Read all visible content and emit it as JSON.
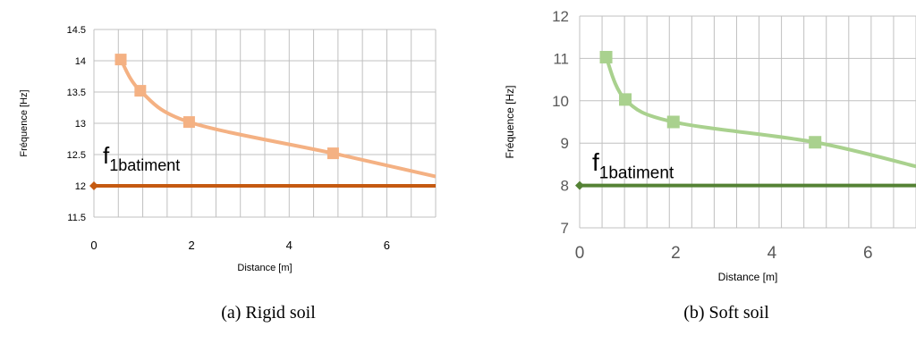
{
  "chart_data": [
    {
      "type": "line",
      "panel": "a",
      "xlabel": "Distance [m]",
      "ylabel": "Fréquence [Hz]",
      "xlim": [
        0,
        7
      ],
      "ylim": [
        11.5,
        14.5
      ],
      "xticks": [
        0,
        2,
        4,
        6
      ],
      "yticks": [
        11.5,
        12,
        12.5,
        13,
        13.5,
        14,
        14.5
      ],
      "grid": true,
      "series": [
        {
          "color": "#f4b183",
          "marker": "square",
          "points": [
            [
              0.55,
              14.02
            ],
            [
              0.95,
              13.52
            ],
            [
              1.95,
              13.02
            ],
            [
              4.9,
              12.52
            ]
          ],
          "extend_to": [
            7,
            12.15
          ]
        },
        {
          "color": "#c55a11",
          "marker": "diamond",
          "points": [
            [
              0,
              12.0
            ],
            [
              7,
              12.0
            ]
          ]
        }
      ],
      "annotation": {
        "main": "f",
        "sub": "1batiment"
      }
    },
    {
      "type": "line",
      "panel": "b",
      "xlabel": "Distance [m]",
      "ylabel": "Fréquence [Hz]",
      "xlim": [
        0,
        7
      ],
      "ylim": [
        7,
        12
      ],
      "xticks": [
        0,
        2,
        4,
        6
      ],
      "yticks": [
        7,
        8,
        9,
        10,
        11,
        12
      ],
      "grid": true,
      "series": [
        {
          "color": "#a9d18e",
          "marker": "square",
          "points": [
            [
              0.55,
              11.03
            ],
            [
              0.95,
              10.03
            ],
            [
              1.95,
              9.5
            ],
            [
              4.9,
              9.02
            ]
          ],
          "extend_to": [
            7,
            8.45
          ]
        },
        {
          "color": "#548235",
          "marker": "diamond",
          "points": [
            [
              0,
              8.0
            ],
            [
              7,
              8.0
            ]
          ]
        }
      ],
      "annotation": {
        "main": "f",
        "sub": "1batiment"
      }
    }
  ],
  "captions": {
    "a": "(a) Rigid soil",
    "b": "(b) Soft soil"
  }
}
